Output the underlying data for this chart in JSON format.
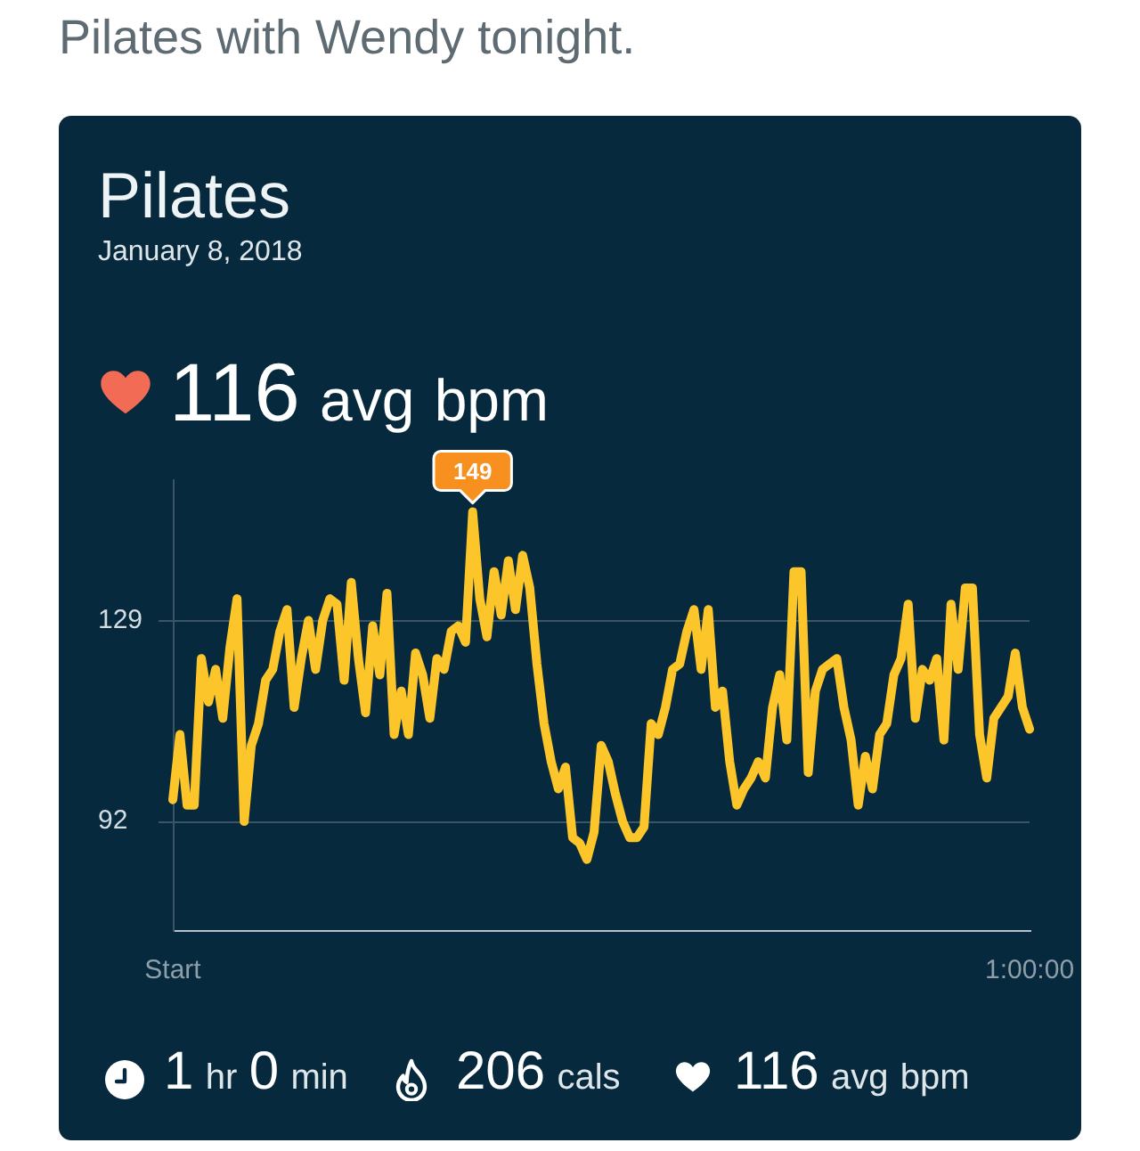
{
  "chart_data": {
    "type": "line",
    "title": "Pilates",
    "subtitle": "January 8, 2018",
    "annotations": [
      "Pilates with Wendy tonight.",
      "116 avg bpm",
      "1 hr 0 min",
      "206 cals",
      "116 avg bpm"
    ],
    "categories": [
      "Start",
      null,
      null,
      null,
      null,
      null,
      null,
      null,
      null,
      null,
      null,
      null,
      null,
      null,
      null,
      null,
      null,
      null,
      null,
      null,
      null,
      null,
      null,
      null,
      null,
      null,
      null,
      null,
      null,
      null,
      null,
      null,
      null,
      null,
      null,
      null,
      null,
      null,
      null,
      null,
      null,
      null,
      null,
      null,
      null,
      null,
      null,
      null,
      null,
      null,
      null,
      null,
      null,
      null,
      null,
      null,
      null,
      null,
      null,
      null,
      null,
      null,
      null,
      null,
      null,
      null,
      null,
      null,
      null,
      null,
      null,
      null,
      null,
      null,
      null,
      null,
      null,
      null,
      null,
      null,
      null,
      null,
      null,
      null,
      null,
      null,
      null,
      null,
      null,
      null,
      null,
      null,
      null,
      null,
      null,
      null,
      null,
      null,
      null,
      null,
      null,
      null,
      null,
      null,
      null,
      null,
      null,
      null,
      null,
      null,
      null,
      null,
      null,
      null,
      null,
      null,
      null,
      null,
      null,
      null,
      "1:00:00"
    ],
    "values": [
      96,
      108,
      95,
      95,
      122,
      114,
      120,
      111,
      124,
      133,
      92,
      106,
      110,
      118,
      120,
      127,
      131,
      113,
      122,
      129,
      120,
      129,
      133,
      132,
      118,
      136,
      122,
      112,
      128,
      119,
      134,
      108,
      116,
      108,
      123,
      119,
      111,
      122,
      120,
      127,
      128,
      125,
      149,
      133,
      126,
      138,
      130,
      140,
      131,
      141,
      135,
      121,
      110,
      103,
      98,
      102,
      89,
      88,
      85,
      90,
      106,
      103,
      97,
      92,
      89,
      89,
      91,
      110,
      108,
      113,
      120,
      121,
      127,
      131,
      120,
      131,
      113,
      116,
      103,
      95,
      98,
      100,
      103,
      100,
      113,
      119,
      107,
      138,
      138,
      101,
      116,
      120,
      121,
      122,
      113,
      107,
      95,
      104,
      98,
      108,
      110,
      119,
      122,
      132,
      111,
      120,
      118,
      122,
      107,
      132,
      120,
      135,
      135,
      108,
      100,
      111,
      113,
      115,
      123,
      113,
      109
    ],
    "value_labels": [
      null,
      null,
      null,
      null,
      null,
      null,
      null,
      null,
      null,
      null,
      null,
      null,
      null,
      null,
      null,
      null,
      null,
      null,
      null,
      null,
      null,
      null,
      null,
      null,
      null,
      null,
      null,
      null,
      null,
      null,
      null,
      null,
      null,
      null,
      null,
      null,
      null,
      null,
      null,
      null,
      null,
      null,
      "149",
      null,
      null,
      null,
      null,
      null,
      null,
      null,
      null,
      null,
      null,
      null,
      null,
      null,
      null,
      null,
      null,
      null,
      null,
      null,
      null,
      null,
      null,
      null,
      null,
      null,
      null,
      null,
      null,
      null,
      null,
      null,
      null,
      null,
      null,
      null,
      null,
      null,
      null,
      null,
      null,
      null,
      null,
      null,
      null,
      null,
      null,
      null,
      null,
      null,
      null,
      null,
      null,
      null,
      null,
      null,
      null,
      null,
      null,
      null,
      null,
      null,
      null,
      null,
      null,
      null,
      null,
      null,
      null,
      null,
      null,
      null,
      null,
      null,
      null,
      null,
      null,
      null,
      null
    ],
    "color": "#fcc62b",
    "ylim": [
      72,
      155
    ],
    "yticks": [
      92,
      129
    ],
    "grid": "y",
    "marker": "none"
  }
}
